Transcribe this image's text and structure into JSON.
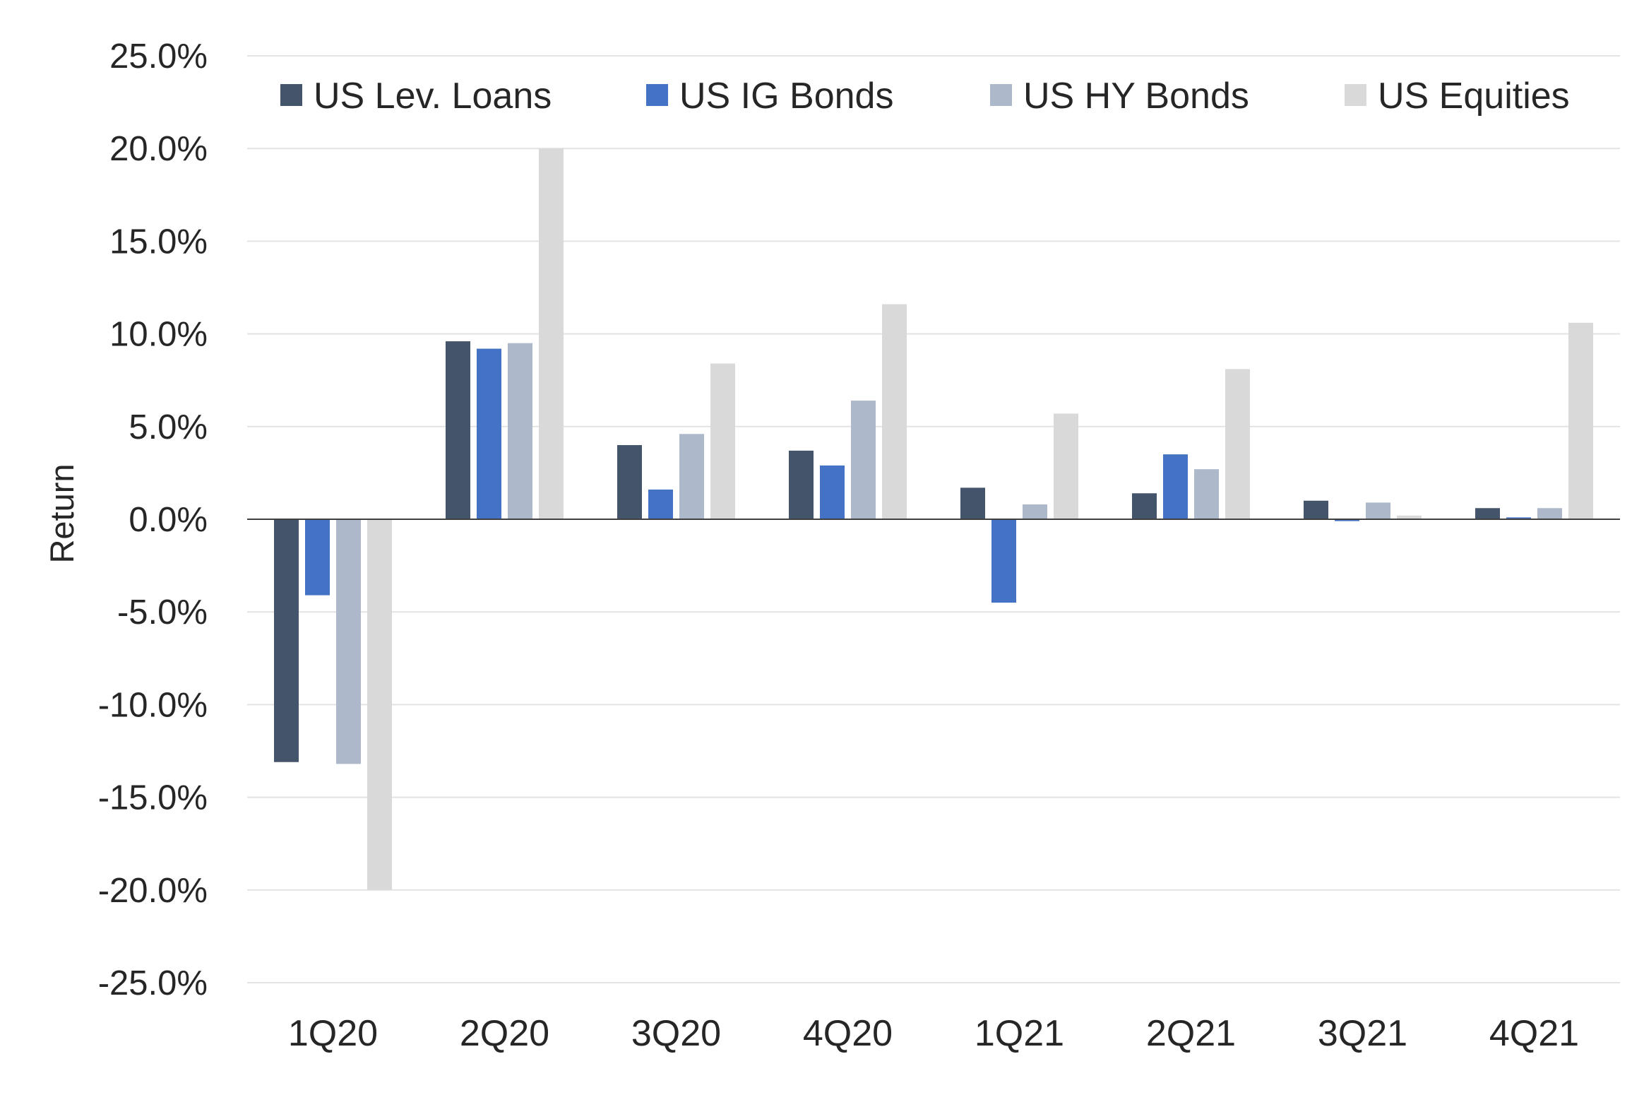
{
  "chart_data": {
    "type": "bar",
    "title": "",
    "xlabel": "",
    "ylabel": "Return",
    "categories": [
      "1Q20",
      "2Q20",
      "3Q20",
      "4Q20",
      "1Q21",
      "2Q21",
      "3Q21",
      "4Q21"
    ],
    "series": [
      {
        "name": "US Lev. Loans",
        "color": "#44546a",
        "values": [
          -13.1,
          9.6,
          4.0,
          3.7,
          1.7,
          1.4,
          1.0,
          0.6
        ]
      },
      {
        "name": "US IG Bonds",
        "color": "#4472c4",
        "values": [
          -4.1,
          9.2,
          1.6,
          2.9,
          -4.5,
          3.5,
          -0.1,
          0.1
        ]
      },
      {
        "name": "US HY Bonds",
        "color": "#adb9ca",
        "values": [
          -13.2,
          9.5,
          4.6,
          6.4,
          0.8,
          2.7,
          0.9,
          0.6
        ]
      },
      {
        "name": "US Equities",
        "color": "#d9d9d9",
        "values": [
          -20.0,
          20.0,
          8.4,
          11.6,
          5.7,
          8.1,
          0.2,
          10.6
        ]
      }
    ],
    "ylim": [
      -25,
      25
    ],
    "yticks": [
      25,
      20,
      15,
      10,
      5,
      0,
      -5,
      -10,
      -15,
      -20,
      -25
    ],
    "ytick_labels": [
      "25.0%",
      "20.0%",
      "15.0%",
      "10.0%",
      "5.0%",
      "0.0%",
      "-5.0%",
      "-10.0%",
      "-15.0%",
      "-20.0%",
      "-25.0%"
    ],
    "grid": true,
    "legend_position": "top"
  }
}
